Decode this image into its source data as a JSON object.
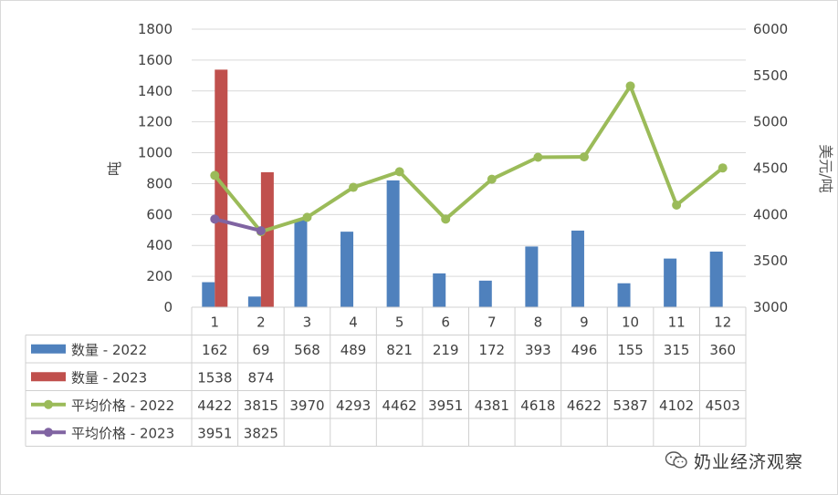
{
  "chart_data": {
    "type": "bar",
    "categories": [
      "1",
      "2",
      "3",
      "4",
      "5",
      "6",
      "7",
      "8",
      "9",
      "10",
      "11",
      "12"
    ],
    "left_axis": {
      "label": "吨",
      "ylim": [
        0,
        1800
      ],
      "ticks": [
        0,
        200,
        400,
        600,
        800,
        1000,
        1200,
        1400,
        1600,
        1800
      ]
    },
    "right_axis": {
      "label": "美元/吨",
      "ylim": [
        3000,
        6000
      ],
      "ticks": [
        3000,
        3500,
        4000,
        4500,
        5000,
        5500,
        6000
      ]
    },
    "grid": true,
    "legend": "data-table",
    "series": [
      {
        "name": "数量 - 2022",
        "kind": "bar",
        "axis": "left",
        "color": "#4f81bd",
        "values": [
          162,
          69,
          568,
          489,
          821,
          219,
          172,
          393,
          496,
          155,
          315,
          360
        ]
      },
      {
        "name": "数量 - 2023",
        "kind": "bar",
        "axis": "left",
        "color": "#c0504d",
        "values": [
          1538,
          874,
          null,
          null,
          null,
          null,
          null,
          null,
          null,
          null,
          null,
          null
        ]
      },
      {
        "name": "平均价格 - 2022",
        "kind": "line",
        "axis": "right",
        "color": "#9bbb59",
        "values": [
          4422,
          3815,
          3970,
          4293,
          4462,
          3951,
          4381,
          4618,
          4622,
          5387,
          4102,
          4503
        ]
      },
      {
        "name": "平均价格 - 2023",
        "kind": "line",
        "axis": "right",
        "color": "#8064a2",
        "values": [
          3951,
          3825,
          null,
          null,
          null,
          null,
          null,
          null,
          null,
          null,
          null,
          null
        ]
      }
    ]
  },
  "watermark": {
    "text": "奶业经济观察",
    "icon": "wechat-icon"
  }
}
